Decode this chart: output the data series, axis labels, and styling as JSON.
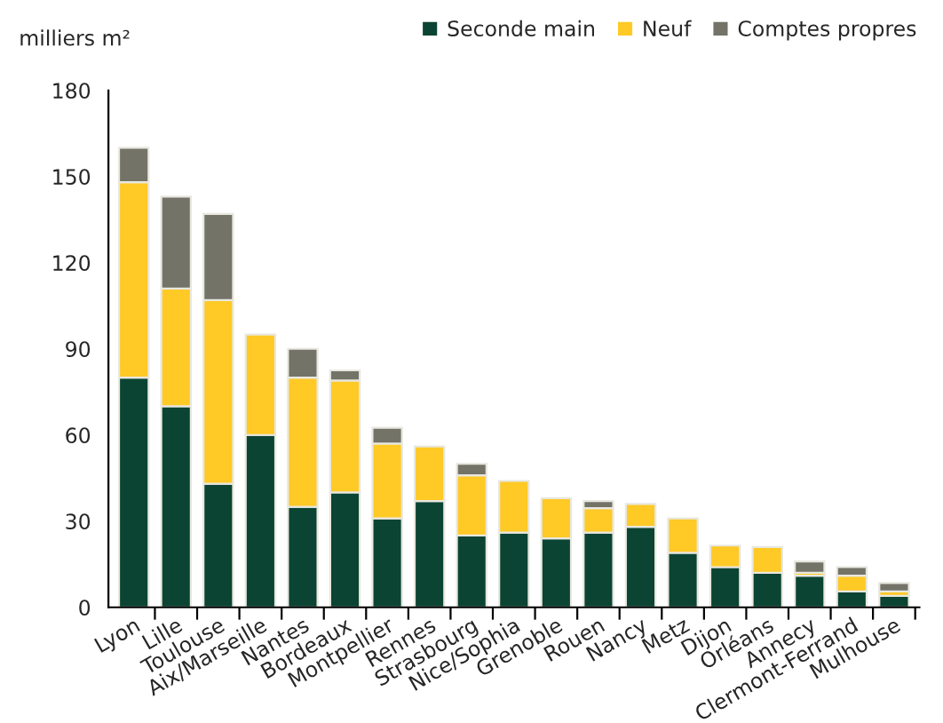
{
  "chart_data": {
    "type": "bar",
    "stacked": true,
    "ylabel": "milliers m²",
    "categories": [
      "Lyon",
      "Lille",
      "Toulouse",
      "Aix/Marseille",
      "Nantes",
      "Bordeaux",
      "Montpellier",
      "Rennes",
      "Strasbourg",
      "Nice/Sophia",
      "Grenoble",
      "Rouen",
      "Nancy",
      "Metz",
      "Dijon",
      "Orléans",
      "Annecy",
      "Clermont-Ferrand",
      "Mulhouse"
    ],
    "series": [
      {
        "name": "Seconde main",
        "color": "#0b4433",
        "values": [
          80,
          70,
          43,
          60,
          35,
          40,
          31,
          37,
          25,
          26,
          24,
          26,
          28,
          19,
          14,
          12,
          11,
          5.5,
          4
        ]
      },
      {
        "name": "Neuf",
        "color": "#ffc926",
        "values": [
          68,
          41,
          64,
          35,
          45,
          39,
          26,
          19,
          21,
          18,
          14,
          8.5,
          8,
          12,
          7.5,
          9,
          1,
          5.5,
          1.5
        ]
      },
      {
        "name": "Comptes propres",
        "color": "#737368",
        "values": [
          12,
          32,
          30,
          null,
          10,
          3.5,
          5.5,
          null,
          4,
          null,
          null,
          2.5,
          null,
          null,
          null,
          null,
          4,
          3,
          3
        ]
      }
    ],
    "ylim": [
      0,
      180
    ],
    "yticks": [
      0,
      30,
      60,
      90,
      120,
      150,
      180
    ],
    "grid": false,
    "legend": "top right"
  }
}
